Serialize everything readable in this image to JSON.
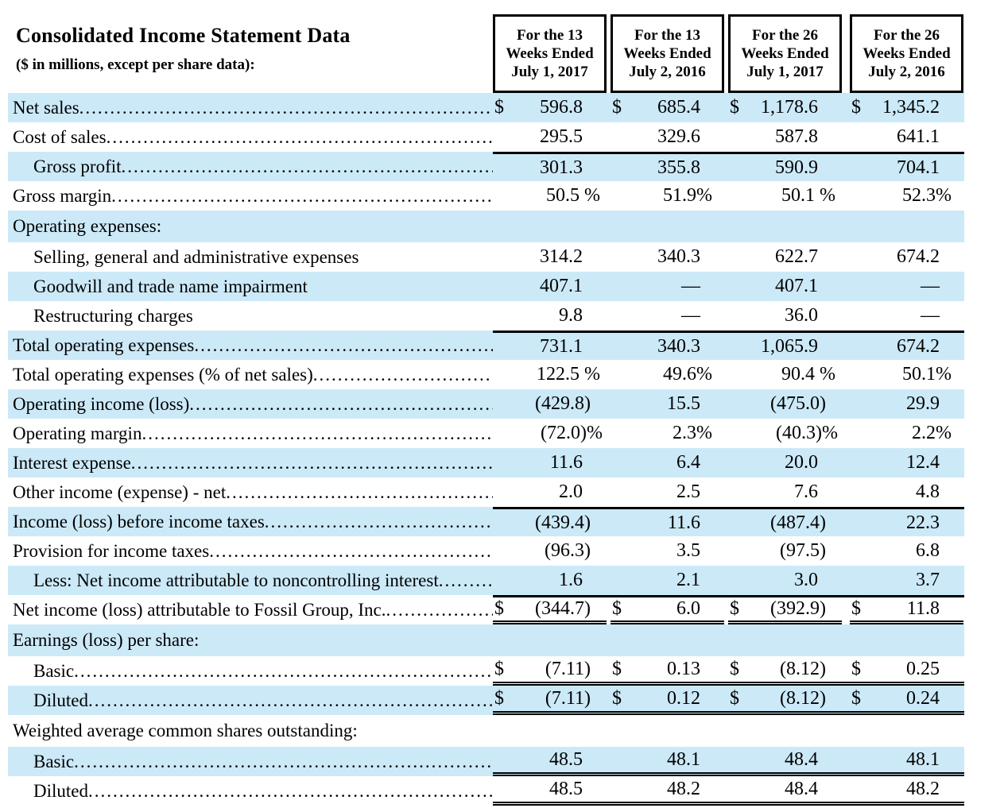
{
  "title": "Consolidated Income Statement Data",
  "subtitle": "($ in millions, except per share data):",
  "currency_symbol": "$",
  "colors": {
    "row_highlight": "#cce9f8",
    "rule": "#000000",
    "text": "#000000"
  },
  "columns": [
    {
      "lines": [
        "For the 13",
        "Weeks Ended",
        "July 1, 2017"
      ]
    },
    {
      "lines": [
        "For the 13",
        "Weeks Ended",
        "July 2, 2016"
      ]
    },
    {
      "lines": [
        "For the 26",
        "Weeks Ended",
        "July 1, 2017"
      ]
    },
    {
      "lines": [
        "For the 26",
        "Weeks Ended",
        "July 2, 2016"
      ]
    }
  ],
  "rows": [
    {
      "label": "Net sales",
      "indent": false,
      "dots": true,
      "bg": "blue",
      "section": false,
      "currency": true,
      "rule_above": null,
      "rule_below": null,
      "values": [
        "596.8",
        "685.4",
        "1,178.6",
        "1,345.2"
      ]
    },
    {
      "label": "Cost of sales",
      "indent": false,
      "dots": true,
      "bg": "white",
      "section": false,
      "currency": false,
      "rule_above": null,
      "rule_below": null,
      "values": [
        "295.5",
        "329.6",
        "587.8",
        "641.1"
      ]
    },
    {
      "label": "Gross profit",
      "indent": true,
      "dots": true,
      "bg": "blue",
      "section": false,
      "currency": false,
      "rule_above": "thick",
      "rule_below": null,
      "values": [
        "301.3",
        "355.8",
        "590.9",
        "704.1"
      ]
    },
    {
      "label": "Gross margin",
      "indent": false,
      "dots": true,
      "bg": "white",
      "section": false,
      "currency": false,
      "rule_above": null,
      "rule_below": null,
      "values": [
        "50.5 %",
        "51.9%",
        "50.1 %",
        "52.3%"
      ]
    },
    {
      "label": "Operating expenses:",
      "indent": false,
      "dots": false,
      "bg": "blue",
      "section": true,
      "currency": false,
      "rule_above": null,
      "rule_below": null,
      "values": [
        "",
        "",
        "",
        ""
      ]
    },
    {
      "label": "Selling, general and administrative expenses",
      "indent": true,
      "dots": false,
      "bg": "white",
      "section": false,
      "currency": false,
      "rule_above": null,
      "rule_below": null,
      "values": [
        "314.2",
        "340.3",
        "622.7",
        "674.2"
      ]
    },
    {
      "label": "Goodwill and trade name impairment",
      "indent": true,
      "dots": false,
      "bg": "blue",
      "section": false,
      "currency": false,
      "rule_above": null,
      "rule_below": null,
      "values": [
        "407.1",
        "—",
        "407.1",
        "—"
      ]
    },
    {
      "label": "Restructuring charges",
      "indent": true,
      "dots": false,
      "bg": "white",
      "section": false,
      "currency": false,
      "rule_above": null,
      "rule_below": null,
      "values": [
        "9.8",
        "—",
        "36.0",
        "—"
      ]
    },
    {
      "label": "Total operating expenses",
      "indent": false,
      "dots": true,
      "bg": "blue",
      "section": false,
      "currency": false,
      "rule_above": "thick",
      "rule_below": null,
      "values": [
        "731.1",
        "340.3",
        "1,065.9",
        "674.2"
      ]
    },
    {
      "label": "Total operating expenses (% of net sales)",
      "indent": false,
      "dots": true,
      "bg": "white",
      "section": false,
      "currency": false,
      "rule_above": null,
      "rule_below": null,
      "values": [
        "122.5 %",
        "49.6%",
        "90.4 %",
        "50.1%"
      ]
    },
    {
      "label": "Operating income (loss)",
      "indent": false,
      "dots": true,
      "bg": "blue",
      "section": false,
      "currency": false,
      "rule_above": null,
      "rule_below": null,
      "values": [
        "(429.8)",
        "15.5",
        "(475.0)",
        "29.9"
      ]
    },
    {
      "label": "Operating margin",
      "indent": false,
      "dots": true,
      "bg": "white",
      "section": false,
      "currency": false,
      "rule_above": null,
      "rule_below": null,
      "values": [
        "(72.0)%",
        "2.3%",
        "(40.3)%",
        "2.2%"
      ]
    },
    {
      "label": "Interest expense",
      "indent": false,
      "dots": true,
      "bg": "blue",
      "section": false,
      "currency": false,
      "rule_above": null,
      "rule_below": null,
      "values": [
        "11.6",
        "6.4",
        "20.0",
        "12.4"
      ]
    },
    {
      "label": "Other income (expense) - net",
      "indent": false,
      "dots": true,
      "bg": "white",
      "section": false,
      "currency": false,
      "rule_above": null,
      "rule_below": null,
      "values": [
        "2.0",
        "2.5",
        "7.6",
        "4.8"
      ]
    },
    {
      "label": "Income (loss) before income taxes",
      "indent": false,
      "dots": true,
      "bg": "blue",
      "section": false,
      "currency": false,
      "rule_above": "thick",
      "rule_below": null,
      "values": [
        "(439.4)",
        "11.6",
        "(487.4)",
        "22.3"
      ]
    },
    {
      "label": "Provision for income taxes",
      "indent": false,
      "dots": true,
      "bg": "white",
      "section": false,
      "currency": false,
      "rule_above": null,
      "rule_below": null,
      "values": [
        "(96.3)",
        "3.5",
        "(97.5)",
        "6.8"
      ]
    },
    {
      "label": "Less: Net income attributable to noncontrolling interest",
      "indent": true,
      "dots": true,
      "bg": "blue",
      "section": false,
      "currency": false,
      "rule_above": null,
      "rule_below": null,
      "values": [
        "1.6",
        "2.1",
        "3.0",
        "3.7"
      ]
    },
    {
      "label": "Net income (loss) attributable to Fossil Group, Inc.",
      "indent": false,
      "dots": true,
      "bg": "white",
      "section": false,
      "currency": true,
      "rule_above": "thick",
      "rule_below": "double_cols",
      "values": [
        "(344.7)",
        "6.0",
        "(392.9)",
        "11.8"
      ]
    },
    {
      "label": "Earnings (loss) per share:",
      "indent": false,
      "dots": false,
      "bg": "blue",
      "section": true,
      "currency": false,
      "rule_above": null,
      "rule_below": null,
      "values": [
        "",
        "",
        "",
        ""
      ]
    },
    {
      "label": "Basic",
      "indent": true,
      "dots": true,
      "bg": "white",
      "section": false,
      "currency": true,
      "rule_above": null,
      "rule_below": "double_full",
      "values": [
        "(7.11)",
        "0.13",
        "(8.12)",
        "0.25"
      ]
    },
    {
      "label": "Diluted",
      "indent": true,
      "dots": true,
      "bg": "blue",
      "section": false,
      "currency": true,
      "rule_above": null,
      "rule_below": "double_full",
      "values": [
        "(7.11)",
        "0.12",
        "(8.12)",
        "0.24"
      ]
    },
    {
      "label": "Weighted average common shares outstanding:",
      "indent": false,
      "dots": false,
      "bg": "white",
      "section": true,
      "currency": false,
      "rule_above": null,
      "rule_below": null,
      "values": [
        "",
        "",
        "",
        ""
      ]
    },
    {
      "label": "Basic",
      "indent": true,
      "dots": true,
      "bg": "blue",
      "section": false,
      "currency": false,
      "rule_above": null,
      "rule_below": "double_full",
      "values": [
        "48.5",
        "48.1",
        "48.4",
        "48.1"
      ]
    },
    {
      "label": "Diluted",
      "indent": true,
      "dots": true,
      "bg": "white",
      "section": false,
      "currency": false,
      "rule_above": null,
      "rule_below": "double_full",
      "values": [
        "48.5",
        "48.2",
        "48.4",
        "48.2"
      ]
    }
  ]
}
